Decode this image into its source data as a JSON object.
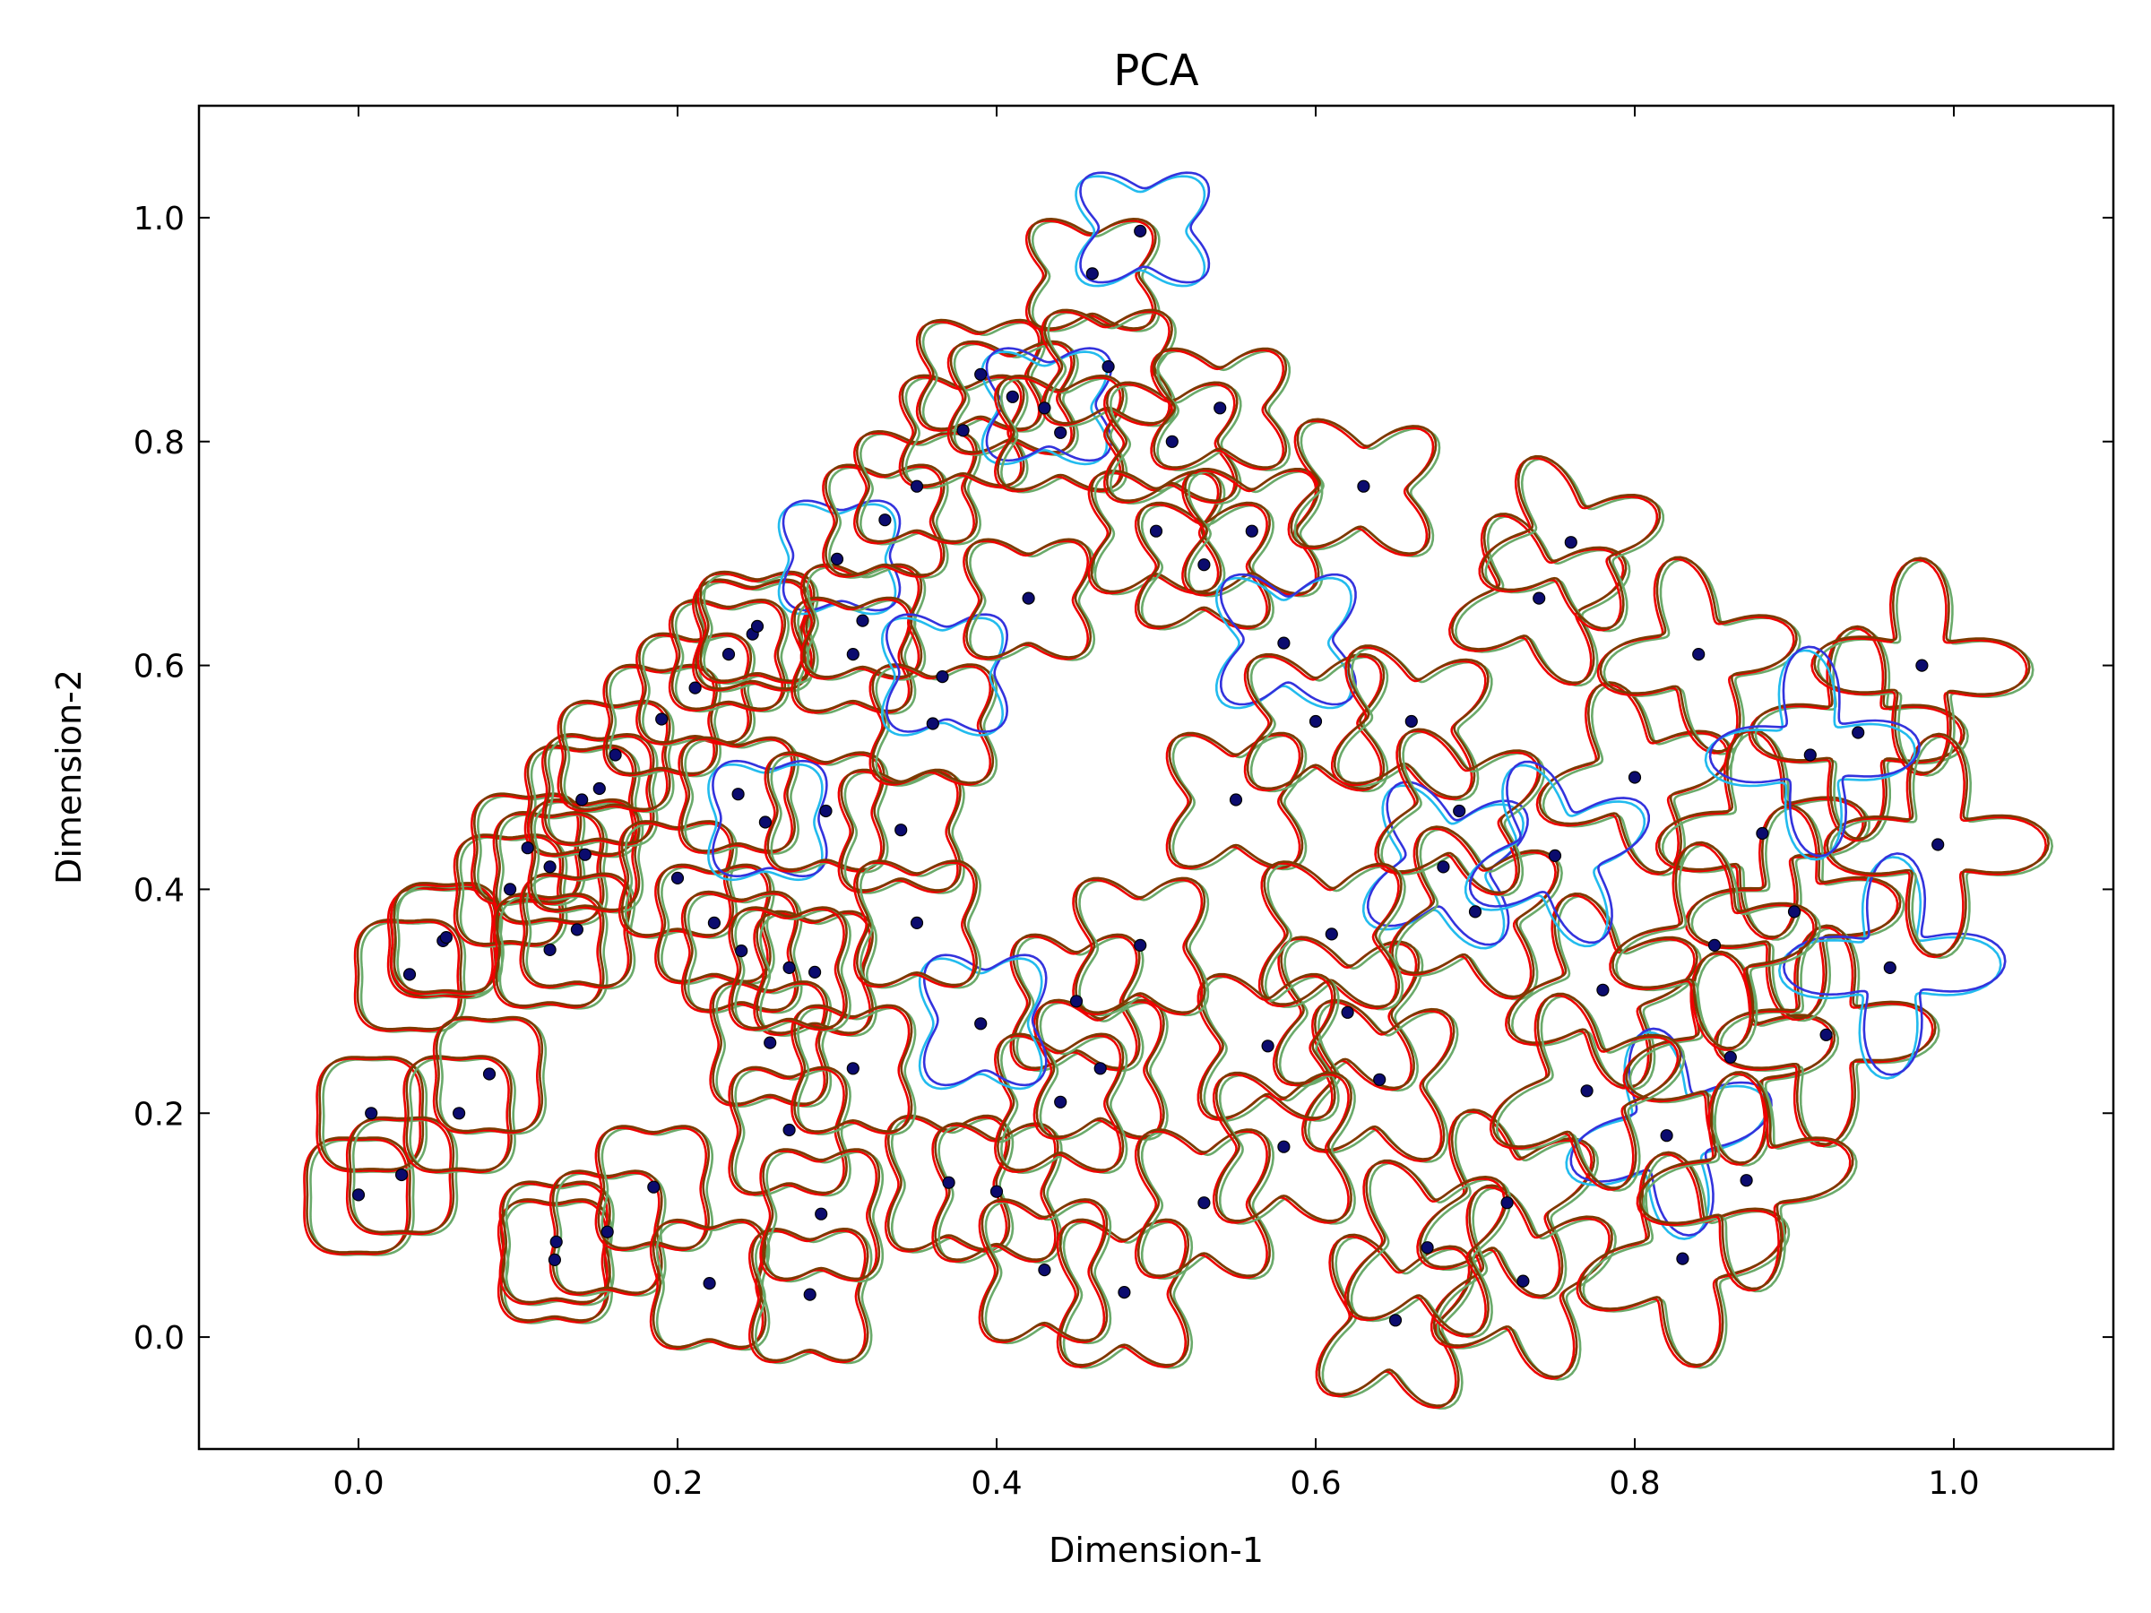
{
  "chart_data": {
    "type": "scatter",
    "title": "PCA",
    "xlabel": "Dimension-1",
    "ylabel": "Dimension-2",
    "xlim": [
      -0.1,
      1.1
    ],
    "ylim": [
      -0.1,
      1.1
    ],
    "xticks": [
      0.0,
      0.2,
      0.4,
      0.6,
      0.8,
      1.0
    ],
    "yticks": [
      0.0,
      0.2,
      0.4,
      0.6,
      0.8,
      1.0
    ],
    "xtick_labels": [
      "0.0",
      "0.2",
      "0.4",
      "0.6",
      "0.8",
      "1.0"
    ],
    "ytick_labels": [
      "0.0",
      "0.2",
      "0.4",
      "0.6",
      "0.8",
      "1.0"
    ],
    "grid": false,
    "legend": "none",
    "marker_color": "#0b0b6e",
    "glyph_colors": {
      "brown": "#7b3b00",
      "red": "#ee0000",
      "green": "#6aaa6a",
      "light_blue": "#22bbee",
      "blue": "#3333dd"
    },
    "points": [
      [
        0.0,
        0.127
      ],
      [
        0.008,
        0.2
      ],
      [
        0.027,
        0.145
      ],
      [
        0.032,
        0.324
      ],
      [
        0.053,
        0.354
      ],
      [
        0.055,
        0.357
      ],
      [
        0.063,
        0.2
      ],
      [
        0.082,
        0.235
      ],
      [
        0.095,
        0.4
      ],
      [
        0.106,
        0.437
      ],
      [
        0.12,
        0.42
      ],
      [
        0.12,
        0.346
      ],
      [
        0.123,
        0.069
      ],
      [
        0.124,
        0.085
      ],
      [
        0.137,
        0.364
      ],
      [
        0.14,
        0.48
      ],
      [
        0.142,
        0.431
      ],
      [
        0.151,
        0.49
      ],
      [
        0.156,
        0.094
      ],
      [
        0.161,
        0.52
      ],
      [
        0.185,
        0.134
      ],
      [
        0.19,
        0.552
      ],
      [
        0.2,
        0.41
      ],
      [
        0.211,
        0.58
      ],
      [
        0.22,
        0.048
      ],
      [
        0.223,
        0.37
      ],
      [
        0.232,
        0.61
      ],
      [
        0.238,
        0.485
      ],
      [
        0.24,
        0.345
      ],
      [
        0.247,
        0.628
      ],
      [
        0.25,
        0.635
      ],
      [
        0.255,
        0.46
      ],
      [
        0.258,
        0.263
      ],
      [
        0.27,
        0.185
      ],
      [
        0.283,
        0.038
      ],
      [
        0.286,
        0.326
      ],
      [
        0.29,
        0.11
      ],
      [
        0.293,
        0.47
      ],
      [
        0.3,
        0.695
      ],
      [
        0.31,
        0.61
      ],
      [
        0.316,
        0.64
      ],
      [
        0.33,
        0.73
      ],
      [
        0.34,
        0.453
      ],
      [
        0.35,
        0.76
      ],
      [
        0.36,
        0.548
      ],
      [
        0.366,
        0.59
      ],
      [
        0.37,
        0.138
      ],
      [
        0.379,
        0.81
      ],
      [
        0.39,
        0.86
      ],
      [
        0.4,
        0.13
      ],
      [
        0.41,
        0.84
      ],
      [
        0.42,
        0.66
      ],
      [
        0.43,
        0.83
      ],
      [
        0.44,
        0.808
      ],
      [
        0.45,
        0.3
      ],
      [
        0.46,
        0.95
      ],
      [
        0.465,
        0.24
      ],
      [
        0.47,
        0.867
      ],
      [
        0.48,
        0.04
      ],
      [
        0.49,
        0.988
      ],
      [
        0.5,
        0.72
      ],
      [
        0.51,
        0.8
      ],
      [
        0.53,
        0.69
      ],
      [
        0.54,
        0.83
      ],
      [
        0.55,
        0.48
      ],
      [
        0.56,
        0.72
      ],
      [
        0.58,
        0.62
      ],
      [
        0.6,
        0.55
      ],
      [
        0.62,
        0.29
      ],
      [
        0.63,
        0.76
      ],
      [
        0.64,
        0.23
      ],
      [
        0.65,
        0.015
      ],
      [
        0.66,
        0.55
      ],
      [
        0.68,
        0.42
      ],
      [
        0.7,
        0.38
      ],
      [
        0.72,
        0.12
      ],
      [
        0.74,
        0.66
      ],
      [
        0.76,
        0.71
      ],
      [
        0.78,
        0.31
      ],
      [
        0.8,
        0.5
      ],
      [
        0.82,
        0.18
      ],
      [
        0.84,
        0.61
      ],
      [
        0.86,
        0.25
      ],
      [
        0.88,
        0.45
      ],
      [
        0.9,
        0.38
      ],
      [
        0.92,
        0.27
      ],
      [
        0.94,
        0.54
      ],
      [
        0.96,
        0.33
      ],
      [
        0.98,
        0.6
      ],
      [
        0.99,
        0.44
      ],
      [
        0.73,
        0.05
      ],
      [
        0.77,
        0.22
      ],
      [
        0.83,
        0.07
      ],
      [
        0.87,
        0.14
      ],
      [
        0.91,
        0.52
      ],
      [
        0.69,
        0.47
      ],
      [
        0.61,
        0.36
      ],
      [
        0.57,
        0.26
      ],
      [
        0.53,
        0.12
      ],
      [
        0.49,
        0.35
      ],
      [
        0.44,
        0.21
      ],
      [
        0.39,
        0.28
      ],
      [
        0.35,
        0.37
      ],
      [
        0.31,
        0.24
      ],
      [
        0.27,
        0.33
      ],
      [
        0.43,
        0.06
      ],
      [
        0.58,
        0.17
      ],
      [
        0.67,
        0.08
      ],
      [
        0.75,
        0.43
      ],
      [
        0.85,
        0.35
      ]
    ]
  }
}
